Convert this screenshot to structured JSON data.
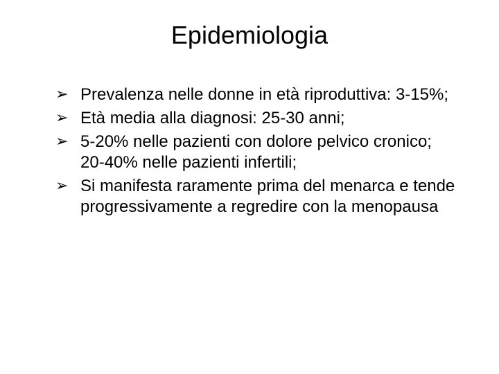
{
  "title": "Epidemiologia",
  "bullets": [
    "Prevalenza nelle donne in età riproduttiva: 3-15%;",
    "Età media alla diagnosi: 25-30 anni;",
    "5-20% nelle pazienti con dolore pelvico cronico; 20-40% nelle pazienti infertili;",
    "Si manifesta raramente prima del menarca e tende progressivamente a regredire con la menopausa"
  ],
  "colors": {
    "background": "#ffffff",
    "text": "#000000"
  },
  "typography": {
    "title_fontsize": 36,
    "body_fontsize": 24,
    "font_family": "Arial"
  }
}
